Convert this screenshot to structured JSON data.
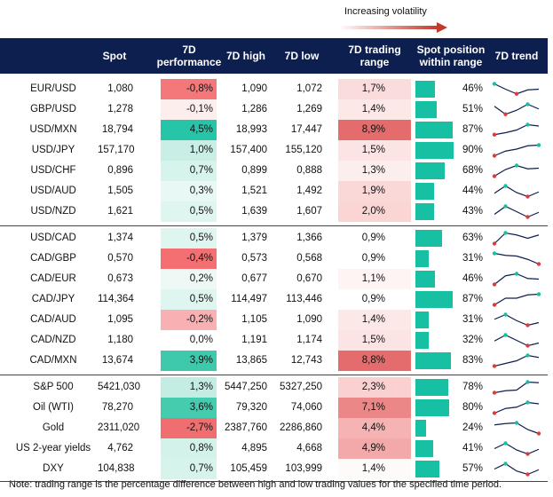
{
  "header": {
    "volatility_note": "Increasing volatility",
    "columns": [
      "Spot",
      "7D performance",
      "7D high",
      "7D low",
      "7D trading range",
      "Spot position within range",
      "7D trend"
    ]
  },
  "groups": [
    {
      "rows": [
        {
          "name": "EUR/USD",
          "spot": "1,080",
          "perf": "-0,8%",
          "perf_color": "#f4777a",
          "high": "1,090",
          "low": "1,072",
          "range": "1,7%",
          "range_color": "#fbdcdc",
          "position": {
            "value": 46,
            "label": "46%"
          },
          "trend": [
            0.9,
            0.5,
            0.15,
            0.45,
            0.5
          ]
        },
        {
          "name": "GBP/USD",
          "spot": "1,278",
          "perf": "-0,1%",
          "perf_color": "#fdeeee",
          "high": "1,286",
          "low": "1,269",
          "range": "1,4%",
          "range_color": "#fde8e8",
          "position": {
            "value": 51,
            "label": "51%"
          },
          "trend": [
            0.75,
            0.15,
            0.45,
            0.9,
            0.55
          ]
        },
        {
          "name": "USD/MXN",
          "spot": "18,794",
          "perf": "4,5%",
          "perf_color": "#26c4a8",
          "high": "18,993",
          "low": "17,447",
          "range": "8,9%",
          "range_color": "#e46c6c",
          "position": {
            "value": 87,
            "label": "87%"
          },
          "trend": [
            0.15,
            0.3,
            0.5,
            0.9,
            0.8
          ]
        },
        {
          "name": "USD/JPY",
          "spot": "157,170",
          "perf": "1,0%",
          "perf_color": "#c9eee6",
          "high": "157,400",
          "low": "155,120",
          "range": "1,5%",
          "range_color": "#fde4e4",
          "position": {
            "value": 90,
            "label": "90%"
          },
          "trend": [
            0.1,
            0.45,
            0.6,
            0.85,
            0.9
          ]
        },
        {
          "name": "USD/CHF",
          "spot": "0,896",
          "perf": "0,7%",
          "perf_color": "#d6f3ec",
          "high": "0,899",
          "low": "0,888",
          "range": "1,3%",
          "range_color": "#fdeeee",
          "position": {
            "value": 68,
            "label": "68%"
          },
          "trend": [
            0.1,
            0.6,
            0.9,
            0.65,
            0.7
          ]
        },
        {
          "name": "USD/AUD",
          "spot": "1,505",
          "perf": "0,3%",
          "perf_color": "#e8f8f4",
          "high": "1,521",
          "low": "1,492",
          "range": "1,9%",
          "range_color": "#fbd8d8",
          "position": {
            "value": 44,
            "label": "44%"
          },
          "trend": [
            0.35,
            0.9,
            0.4,
            0.1,
            0.45
          ]
        },
        {
          "name": "USD/NZD",
          "spot": "1,621",
          "perf": "0,5%",
          "perf_color": "#dff5ef",
          "high": "1,639",
          "low": "1,607",
          "range": "2,0%",
          "range_color": "#fbd4d4",
          "position": {
            "value": 43,
            "label": "43%"
          },
          "trend": [
            0.3,
            0.9,
            0.5,
            0.1,
            0.45
          ]
        }
      ]
    },
    {
      "rows": [
        {
          "name": "USD/CAD",
          "spot": "1,374",
          "perf": "0,5%",
          "perf_color": "#dff5ef",
          "high": "1,379",
          "low": "1,366",
          "range": "0,9%",
          "range_color": "#ffffff",
          "position": {
            "value": 63,
            "label": "63%"
          },
          "trend": [
            0.1,
            0.9,
            0.75,
            0.5,
            0.75
          ]
        },
        {
          "name": "CAD/GBP",
          "spot": "0,570",
          "perf": "-0,4%",
          "perf_color": "#f46f72",
          "high": "0,573",
          "low": "0,568",
          "range": "0,9%",
          "range_color": "#ffffff",
          "position": {
            "value": 31,
            "label": "31%"
          },
          "trend": [
            0.9,
            0.75,
            0.7,
            0.45,
            0.1
          ]
        },
        {
          "name": "CAD/EUR",
          "spot": "0,673",
          "perf": "0,2%",
          "perf_color": "#eef9f6",
          "high": "0,677",
          "low": "0,670",
          "range": "1,1%",
          "range_color": "#fef4f4",
          "position": {
            "value": 46,
            "label": "46%"
          },
          "trend": [
            0.1,
            0.75,
            0.9,
            0.55,
            0.5
          ]
        },
        {
          "name": "CAD/JPY",
          "spot": "114,364",
          "perf": "0,5%",
          "perf_color": "#dff5ef",
          "high": "114,497",
          "low": "113,446",
          "range": "0,9%",
          "range_color": "#ffffff",
          "position": {
            "value": 87,
            "label": "87%"
          },
          "trend": [
            0.1,
            0.6,
            0.6,
            0.85,
            0.9
          ]
        },
        {
          "name": "CAD/AUD",
          "spot": "1,095",
          "perf": "-0,2%",
          "perf_color": "#f8b0b2",
          "high": "1,105",
          "low": "1,090",
          "range": "1,4%",
          "range_color": "#fde8e8",
          "position": {
            "value": 31,
            "label": "31%"
          },
          "trend": [
            0.55,
            0.9,
            0.45,
            0.1,
            0.3
          ]
        },
        {
          "name": "CAD/NZD",
          "spot": "1,180",
          "perf": "0,0%",
          "perf_color": "#ffffff",
          "high": "1,191",
          "low": "1,174",
          "range": "1,5%",
          "range_color": "#fde4e4",
          "position": {
            "value": 32,
            "label": "32%"
          },
          "trend": [
            0.45,
            0.9,
            0.5,
            0.1,
            0.3
          ]
        },
        {
          "name": "CAD/MXN",
          "spot": "13,674",
          "perf": "3,9%",
          "perf_color": "#3ec9ac",
          "high": "13,865",
          "low": "12,743",
          "range": "8,8%",
          "range_color": "#e46c6c",
          "position": {
            "value": 83,
            "label": "83%"
          },
          "trend": [
            0.1,
            0.3,
            0.5,
            0.9,
            0.75
          ]
        }
      ]
    },
    {
      "rows": [
        {
          "name": "S&P 500",
          "spot": "5421,030",
          "perf": "1,3%",
          "perf_color": "#c3ece3",
          "high": "5447,250",
          "low": "5327,250",
          "range": "2,3%",
          "range_color": "#fbd0d0",
          "position": {
            "value": 78,
            "label": "78%"
          },
          "trend": [
            0.1,
            0.25,
            0.3,
            0.9,
            0.85
          ]
        },
        {
          "name": "Oil (WTI)",
          "spot": "78,270",
          "perf": "3,6%",
          "perf_color": "#45cbae",
          "high": "79,320",
          "low": "74,060",
          "range": "7,1%",
          "range_color": "#ec8787",
          "position": {
            "value": 80,
            "label": "80%"
          },
          "trend": [
            0.1,
            0.45,
            0.55,
            0.9,
            0.8
          ]
        },
        {
          "name": "Gold",
          "spot": "2311,020",
          "perf": "-2,7%",
          "perf_color": "#f06e70",
          "high": "2387,760",
          "low": "2286,860",
          "range": "4,4%",
          "range_color": "#f5b3b3",
          "position": {
            "value": 24,
            "label": "24%"
          },
          "trend": [
            0.75,
            0.85,
            0.9,
            0.4,
            0.1
          ]
        },
        {
          "name": "US 2-year yields",
          "spot": "4,762",
          "perf": "0,8%",
          "perf_color": "#d3f2ea",
          "high": "4,895",
          "low": "4,668",
          "range": "4,9%",
          "range_color": "#f3a9a9",
          "position": {
            "value": 41,
            "label": "41%"
          },
          "trend": [
            0.5,
            0.9,
            0.4,
            0.1,
            0.45
          ]
        },
        {
          "name": "DXY",
          "spot": "104,838",
          "perf": "0,7%",
          "perf_color": "#d6f3ec",
          "high": "105,459",
          "low": "103,999",
          "range": "1,4%",
          "range_color": "#fefafa",
          "position": {
            "value": 57,
            "label": "57%"
          },
          "trend": [
            0.5,
            0.9,
            0.35,
            0.1,
            0.45
          ]
        }
      ]
    }
  ],
  "footnote": "Note: trading range is the percentage difference between high and low trading values for the specified time period."
}
